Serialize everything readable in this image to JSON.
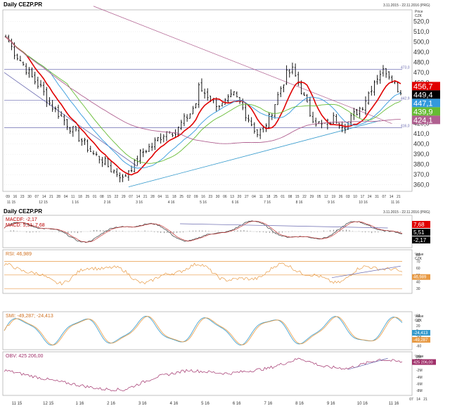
{
  "header": {
    "title": "Daily CEZP.PR",
    "date_range": "3.11.2015 - 22.11.2016 (PRG)",
    "price_label": "Price",
    "currency": "CZK"
  },
  "lower_header": {
    "title": "Daily CEZP.PR",
    "date_range": "3.11.2015 - 22.11.2016 (PRG)"
  },
  "colors": {
    "price": "#000000",
    "ma_red": "#e00000",
    "ma_blue": "#3399dd",
    "ma_green": "#66bb33",
    "ma_purple": "#b06090",
    "hline": "#6a6ab0",
    "trend_blue": "#3399cc",
    "rsi": "#e89a44",
    "obv": "#a0306a",
    "grid": "#d8d8d8"
  },
  "chart_data": [
    {
      "type": "ohlc",
      "panel": "price",
      "title": "Daily CEZP.PR",
      "ylim": [
        355,
        530
      ],
      "y_ticks": [
        "360,0",
        "370,0",
        "380,0",
        "390,0",
        "400,0",
        "410,0",
        "420,0",
        "430,0",
        "440,0",
        "450,0",
        "460,0",
        "470,0",
        "480,0",
        "490,0",
        "500,0",
        "510,0",
        "520,0"
      ],
      "x_ticks": [
        "09",
        "16",
        "23",
        "30",
        "07",
        "14",
        "21",
        "28",
        "04",
        "11",
        "18",
        "25",
        "01",
        "08",
        "15",
        "22",
        "29",
        "07",
        "14",
        "21",
        "28",
        "04",
        "11",
        "18",
        "25",
        "02",
        "09",
        "16",
        "23",
        "30",
        "06",
        "13",
        "20",
        "27",
        "04",
        "11",
        "18",
        "25",
        "01",
        "08",
        "15",
        "22",
        "29",
        "05",
        "12",
        "19",
        "26",
        "03",
        "10",
        "17",
        "24",
        "31",
        "07",
        "14",
        "21"
      ],
      "months": [
        "11 15",
        "12 15",
        "1 16",
        "2 16",
        "3 16",
        "4 16",
        "5 16",
        "6 16",
        "7 16",
        "8 16",
        "9 16",
        "10 16",
        "11 16"
      ],
      "close_anchors": [
        [
          0,
          505
        ],
        [
          3,
          490
        ],
        [
          6,
          478
        ],
        [
          9,
          465
        ],
        [
          12,
          455
        ],
        [
          15,
          440
        ],
        [
          18,
          430
        ],
        [
          21,
          420
        ],
        [
          24,
          410
        ],
        [
          27,
          400
        ],
        [
          30,
          390
        ],
        [
          33,
          385
        ],
        [
          36,
          375
        ],
        [
          39,
          370
        ],
        [
          40,
          365
        ],
        [
          42,
          375
        ],
        [
          44,
          380
        ],
        [
          46,
          390
        ],
        [
          48,
          395
        ],
        [
          50,
          398
        ],
        [
          52,
          405
        ],
        [
          54,
          410
        ],
        [
          56,
          415
        ],
        [
          58,
          410
        ],
        [
          60,
          420
        ],
        [
          63,
          430
        ],
        [
          65,
          440
        ],
        [
          66,
          455
        ],
        [
          68,
          450
        ],
        [
          70,
          445
        ],
        [
          72,
          440
        ],
        [
          74,
          438
        ],
        [
          76,
          442
        ],
        [
          78,
          448
        ],
        [
          80,
          440
        ],
        [
          82,
          430
        ],
        [
          84,
          420
        ],
        [
          86,
          410
        ],
        [
          88,
          415
        ],
        [
          90,
          425
        ],
        [
          92,
          440
        ],
        [
          94,
          455
        ],
        [
          96,
          468
        ],
        [
          98,
          472
        ],
        [
          100,
          460
        ],
        [
          102,
          445
        ],
        [
          104,
          430
        ],
        [
          106,
          422
        ],
        [
          108,
          418
        ],
        [
          110,
          420
        ],
        [
          112,
          425
        ],
        [
          114,
          422
        ],
        [
          116,
          418
        ],
        [
          118,
          425
        ],
        [
          120,
          432
        ],
        [
          122,
          438
        ],
        [
          124,
          450
        ],
        [
          126,
          462
        ],
        [
          128,
          470
        ],
        [
          130,
          472
        ],
        [
          132,
          465
        ],
        [
          134,
          455
        ],
        [
          135,
          449.4
        ]
      ],
      "n_bars": 136,
      "series": [
        {
          "name": "",
          "kind": "ma",
          "color": "#e00000",
          "last": 456.7
        },
        {
          "name": "",
          "kind": "ma",
          "color": "#3399dd",
          "last": 447.1
        },
        {
          "name": "",
          "kind": "ma",
          "color": "#66bb33",
          "last": 439.9
        },
        {
          "name": "",
          "kind": "ma",
          "color": "#b06090",
          "last": 424.1
        }
      ],
      "horizontal_levels": [
        {
          "value": 473.0,
          "label": "473,0"
        },
        {
          "value": 442.9,
          "label": "442,9"
        },
        {
          "value": 416.0,
          "label": "416,0"
        }
      ],
      "right_labels": [
        {
          "text": "456,7",
          "value": 456.7,
          "bg": "#e00000",
          "fg": "#ffffff"
        },
        {
          "text": "449,4",
          "value": 449.4,
          "bg": "#000000",
          "fg": "#ffffff"
        },
        {
          "text": "447,1",
          "value": 447.1,
          "bg": "#3399dd",
          "fg": "#ffffff"
        },
        {
          "text": "439,9",
          "value": 439.9,
          "bg": "#66bb33",
          "fg": "#ffffff"
        },
        {
          "text": "424,1",
          "value": 424.1,
          "bg": "#b06090",
          "fg": "#ffffff"
        }
      ]
    },
    {
      "type": "line",
      "panel": "macd",
      "legend": "MACDF: -2,17",
      "legend2": "MACD: 5,51; 7,68",
      "values_labels": [
        "7,68",
        "5,51",
        "-2,17"
      ]
    },
    {
      "type": "line",
      "panel": "rsi",
      "legend": "RSI: 46,989",
      "unit_label": "Value",
      "unit_currency": "CZK",
      "y_ticks": [
        "80",
        "70",
        "60",
        "50",
        "40",
        "30"
      ],
      "last_label": "46,989",
      "levels": [
        70,
        50,
        30
      ],
      "ylim": [
        25,
        85
      ]
    },
    {
      "type": "line",
      "panel": "smi",
      "legend": "SMI: -49,287; -24,413",
      "unit_label": "Value",
      "unit_currency": "CZK",
      "y_ticks": [
        "60",
        "40",
        "20",
        "0",
        "-20",
        "-40",
        "-60"
      ],
      "last_labels": [
        "-24,413",
        "-49,287"
      ],
      "ylim": [
        -70,
        70
      ]
    },
    {
      "type": "line",
      "panel": "obv",
      "legend": "OBV: 425 206,00",
      "unit_label": "Value",
      "unit_currency": "CZK",
      "y_ticks": [
        "2M",
        "0",
        "-2M",
        "-4M",
        "-6M",
        "-8M"
      ],
      "last_label": "425 206,00",
      "ylim": [
        -9,
        3
      ]
    }
  ],
  "lower_x_months": [
    "11 15",
    "12 15",
    "1 16",
    "2 16",
    "3 16",
    "4 16",
    "5 16",
    "6 16",
    "7 16",
    "8 16",
    "9 16",
    "10 16",
    "11 16"
  ],
  "lower_x_days": [
    "07",
    "14",
    "21"
  ]
}
